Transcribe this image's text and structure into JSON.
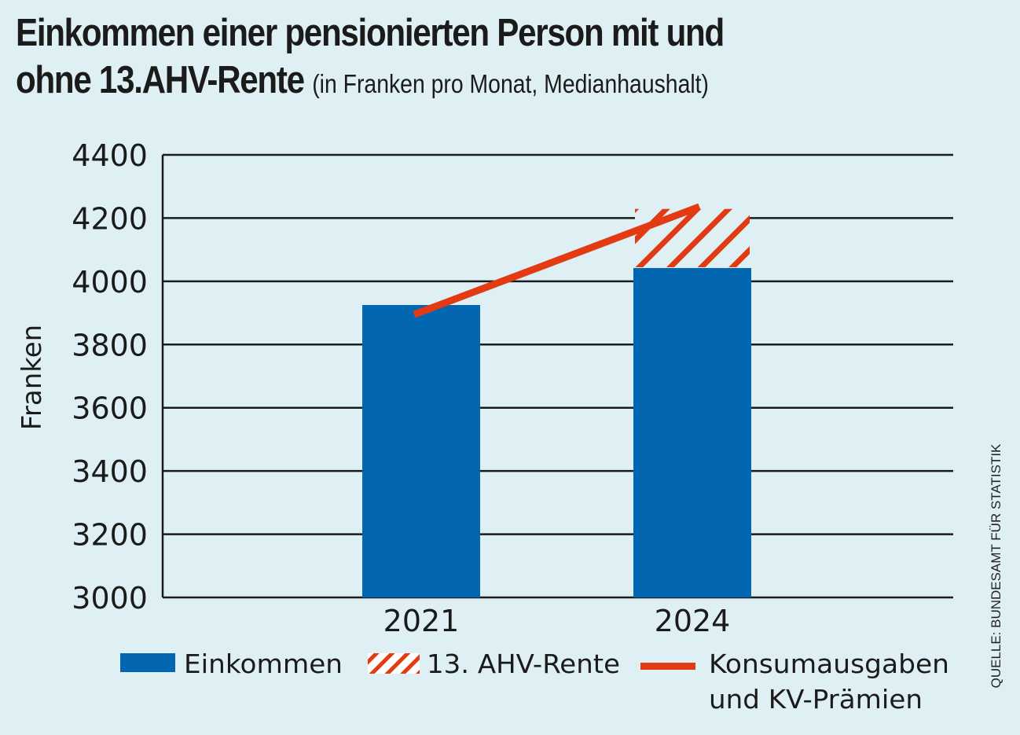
{
  "title_line1": "Einkommen einer pensionierten Person mit und",
  "title_line2": "ohne 13.AHV-Rente",
  "subtitle": "(in Franken pro Monat, Medianhaushalt)",
  "source": "QUELLE: BUNDESAMT FÜR STATISTIK",
  "colors": {
    "background": "#dff0f5",
    "income": "#0366b0",
    "ahv": "#e23b14",
    "line": "#e23b14",
    "grid": "#1b1b1b"
  },
  "chart_data": {
    "type": "bar",
    "title": "Einkommen einer pensionierten Person mit und ohne 13.AHV-Rente (in Franken pro Monat, Medianhaushalt)",
    "xlabel": "",
    "ylabel": "Franken",
    "ylim": [
      3000,
      4400
    ],
    "yticks": [
      3000,
      3200,
      3400,
      3600,
      3800,
      4000,
      4200,
      4400
    ],
    "ytick_labels": [
      "3000",
      "3200",
      "3400",
      "3600",
      "3800",
      "4000",
      "4200",
      "4400"
    ],
    "grid": true,
    "categories": [
      "2021",
      "2024"
    ],
    "stacked": true,
    "series": [
      {
        "name": "Einkommen",
        "type": "bar",
        "values": [
          3925,
          4042
        ]
      },
      {
        "name": "13. AHV-Rente",
        "type": "bar-hatched",
        "values": [
          0,
          187
        ]
      },
      {
        "name": "Konsumausgaben und KV-Prämien",
        "type": "line",
        "values": [
          3895,
          4236
        ]
      }
    ],
    "legend": {
      "placement": "bottom",
      "items": [
        {
          "label": "Einkommen",
          "kind": "solid"
        },
        {
          "label": "13. AHV-Rente",
          "kind": "hatch"
        },
        {
          "label_line1": "Konsumausgaben",
          "label_line2": "und KV-Prämien",
          "kind": "line"
        }
      ]
    }
  }
}
